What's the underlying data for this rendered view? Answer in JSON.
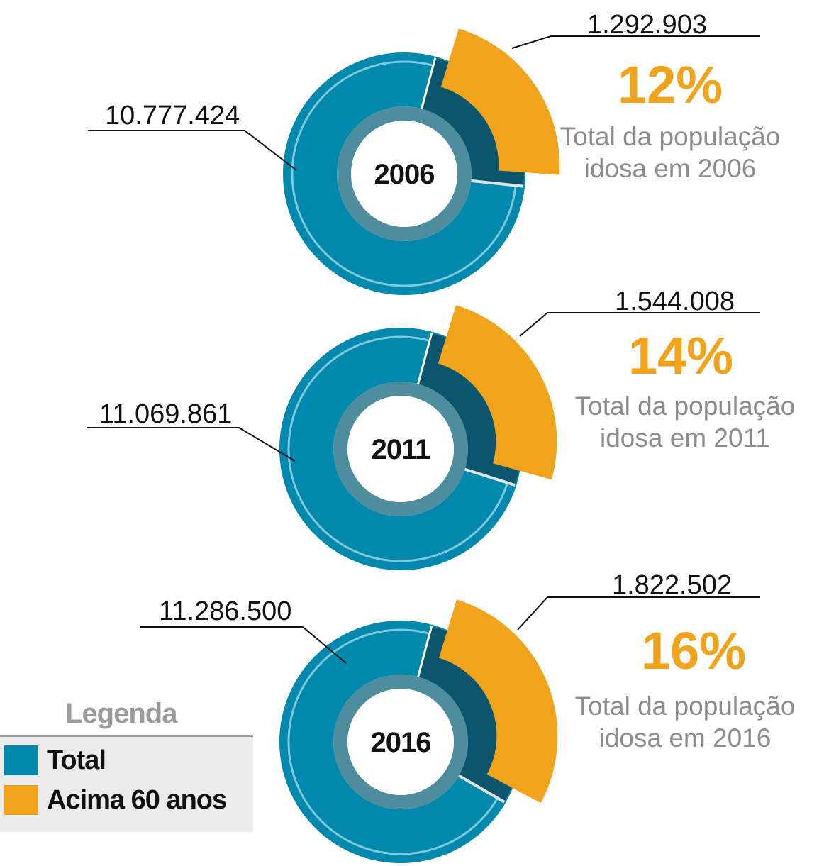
{
  "colors": {
    "total": "#0088ad",
    "senior": "#f0a31b",
    "percent_text": "#f0a31b",
    "caption_text": "#8c8c8c"
  },
  "chart_data": [
    {
      "type": "pie",
      "center_label": "2006",
      "categories": [
        "Total",
        "Acima 60 anos"
      ],
      "values": [
        10777424,
        1292903
      ],
      "value_labels": [
        "10.777.424",
        "1.292.903"
      ],
      "percent": "12%",
      "caption": [
        "Total da população",
        "idosa em 2006"
      ]
    },
    {
      "type": "pie",
      "center_label": "2011",
      "categories": [
        "Total",
        "Acima 60 anos"
      ],
      "values": [
        11069861,
        1544008
      ],
      "value_labels": [
        "11.069.861",
        "1.544.008"
      ],
      "percent": "14%",
      "caption": [
        "Total da população",
        "idosa em 2011"
      ]
    },
    {
      "type": "pie",
      "center_label": "2016",
      "categories": [
        "Total",
        "Acima 60 anos"
      ],
      "values": [
        11286500,
        1822502
      ],
      "value_labels": [
        "11.286.500",
        "1.822.502"
      ],
      "percent": "16%",
      "caption": [
        "Total da população",
        "idosa em 2016"
      ]
    }
  ],
  "legend": {
    "title": "Legenda",
    "items": [
      {
        "label": "Total",
        "color": "#0088ad"
      },
      {
        "label": "Acima 60 anos",
        "color": "#f0a31b"
      }
    ]
  }
}
